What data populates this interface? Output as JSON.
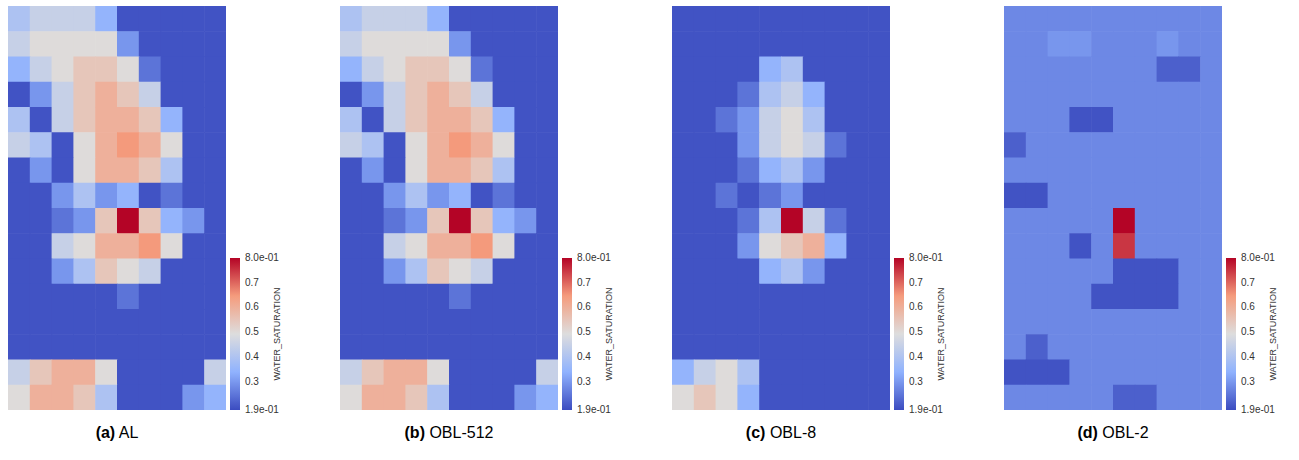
{
  "chart_data": [
    {
      "type": "heatmap",
      "label": "(a)",
      "title": "AL",
      "tick_labels": false,
      "cells": [
        [
          0.4,
          0.45,
          0.45,
          0.45,
          0.35,
          0.2,
          0.2,
          0.2,
          0.2,
          0.2
        ],
        [
          0.45,
          0.5,
          0.5,
          0.5,
          0.5,
          0.3,
          0.2,
          0.2,
          0.2,
          0.2
        ],
        [
          0.35,
          0.45,
          0.5,
          0.55,
          0.55,
          0.5,
          0.25,
          0.2,
          0.2,
          0.2
        ],
        [
          0.2,
          0.3,
          0.45,
          0.55,
          0.6,
          0.55,
          0.45,
          0.2,
          0.2,
          0.2
        ],
        [
          0.4,
          0.2,
          0.45,
          0.55,
          0.6,
          0.6,
          0.55,
          0.35,
          0.2,
          0.2
        ],
        [
          0.45,
          0.4,
          0.2,
          0.5,
          0.6,
          0.65,
          0.6,
          0.5,
          0.2,
          0.2
        ],
        [
          0.2,
          0.3,
          0.2,
          0.5,
          0.6,
          0.6,
          0.55,
          0.4,
          0.2,
          0.2
        ],
        [
          0.2,
          0.2,
          0.3,
          0.4,
          0.3,
          0.35,
          0.2,
          0.25,
          0.2,
          0.2
        ],
        [
          0.2,
          0.2,
          0.25,
          0.3,
          0.55,
          0.8,
          0.55,
          0.35,
          0.3,
          0.2
        ],
        [
          0.2,
          0.2,
          0.45,
          0.5,
          0.6,
          0.6,
          0.65,
          0.5,
          0.2,
          0.2
        ],
        [
          0.2,
          0.2,
          0.3,
          0.4,
          0.55,
          0.5,
          0.45,
          0.2,
          0.2,
          0.2
        ],
        [
          0.2,
          0.2,
          0.2,
          0.2,
          0.2,
          0.25,
          0.2,
          0.2,
          0.2,
          0.2
        ],
        [
          0.2,
          0.2,
          0.2,
          0.2,
          0.2,
          0.2,
          0.2,
          0.2,
          0.2,
          0.2
        ],
        [
          0.2,
          0.2,
          0.2,
          0.2,
          0.2,
          0.2,
          0.2,
          0.2,
          0.2,
          0.2
        ],
        [
          0.45,
          0.55,
          0.6,
          0.6,
          0.5,
          0.2,
          0.2,
          0.2,
          0.2,
          0.45
        ],
        [
          0.5,
          0.6,
          0.6,
          0.55,
          0.4,
          0.2,
          0.2,
          0.2,
          0.3,
          0.35
        ]
      ],
      "colorbar_range": [
        0.19,
        0.8
      ],
      "colorbar_ticks": [
        {
          "value": 0.19,
          "label": "1.9e-01"
        },
        0.3,
        0.4,
        0.5,
        0.6,
        0.7,
        {
          "value": 0.8,
          "label": "8.0e-01"
        }
      ],
      "colorbar_label": "WATER_SATURATION"
    },
    {
      "type": "heatmap",
      "label": "(b)",
      "title": "OBL-512",
      "tick_labels": false,
      "cells": [
        [
          0.4,
          0.45,
          0.45,
          0.45,
          0.35,
          0.2,
          0.2,
          0.2,
          0.2,
          0.2
        ],
        [
          0.45,
          0.5,
          0.5,
          0.5,
          0.5,
          0.3,
          0.2,
          0.2,
          0.2,
          0.2
        ],
        [
          0.35,
          0.45,
          0.5,
          0.55,
          0.55,
          0.5,
          0.25,
          0.2,
          0.2,
          0.2
        ],
        [
          0.2,
          0.3,
          0.45,
          0.55,
          0.6,
          0.55,
          0.45,
          0.2,
          0.2,
          0.2
        ],
        [
          0.4,
          0.2,
          0.45,
          0.55,
          0.6,
          0.6,
          0.55,
          0.35,
          0.2,
          0.2
        ],
        [
          0.45,
          0.4,
          0.2,
          0.5,
          0.6,
          0.65,
          0.6,
          0.5,
          0.2,
          0.2
        ],
        [
          0.2,
          0.3,
          0.2,
          0.5,
          0.6,
          0.6,
          0.55,
          0.4,
          0.2,
          0.2
        ],
        [
          0.2,
          0.2,
          0.3,
          0.4,
          0.3,
          0.35,
          0.2,
          0.25,
          0.2,
          0.2
        ],
        [
          0.2,
          0.2,
          0.25,
          0.3,
          0.55,
          0.8,
          0.55,
          0.35,
          0.3,
          0.2
        ],
        [
          0.2,
          0.2,
          0.45,
          0.5,
          0.6,
          0.6,
          0.65,
          0.5,
          0.2,
          0.2
        ],
        [
          0.2,
          0.2,
          0.3,
          0.4,
          0.55,
          0.5,
          0.45,
          0.2,
          0.2,
          0.2
        ],
        [
          0.2,
          0.2,
          0.2,
          0.2,
          0.2,
          0.25,
          0.2,
          0.2,
          0.2,
          0.2
        ],
        [
          0.2,
          0.2,
          0.2,
          0.2,
          0.2,
          0.2,
          0.2,
          0.2,
          0.2,
          0.2
        ],
        [
          0.2,
          0.2,
          0.2,
          0.2,
          0.2,
          0.2,
          0.2,
          0.2,
          0.2,
          0.2
        ],
        [
          0.45,
          0.55,
          0.6,
          0.6,
          0.5,
          0.2,
          0.2,
          0.2,
          0.2,
          0.45
        ],
        [
          0.5,
          0.6,
          0.6,
          0.55,
          0.4,
          0.2,
          0.2,
          0.2,
          0.3,
          0.35
        ]
      ],
      "colorbar_range": [
        0.19,
        0.8
      ],
      "colorbar_ticks": [
        {
          "value": 0.19,
          "label": "1.9e-01"
        },
        0.3,
        0.4,
        0.5,
        0.6,
        0.7,
        {
          "value": 0.8,
          "label": "8.0e-01"
        }
      ],
      "colorbar_label": "WATER_SATURATION"
    },
    {
      "type": "heatmap",
      "label": "(c)",
      "title": "OBL-8",
      "tick_labels": false,
      "cells": [
        [
          0.2,
          0.2,
          0.2,
          0.2,
          0.2,
          0.2,
          0.2,
          0.2,
          0.2,
          0.2
        ],
        [
          0.2,
          0.2,
          0.2,
          0.2,
          0.2,
          0.2,
          0.2,
          0.2,
          0.2,
          0.2
        ],
        [
          0.2,
          0.2,
          0.2,
          0.2,
          0.35,
          0.4,
          0.2,
          0.2,
          0.2,
          0.2
        ],
        [
          0.2,
          0.2,
          0.2,
          0.25,
          0.4,
          0.45,
          0.35,
          0.2,
          0.2,
          0.2
        ],
        [
          0.2,
          0.2,
          0.25,
          0.3,
          0.45,
          0.5,
          0.4,
          0.2,
          0.2,
          0.2
        ],
        [
          0.2,
          0.2,
          0.2,
          0.3,
          0.45,
          0.5,
          0.45,
          0.25,
          0.2,
          0.2
        ],
        [
          0.2,
          0.2,
          0.2,
          0.25,
          0.35,
          0.4,
          0.3,
          0.2,
          0.2,
          0.2
        ],
        [
          0.2,
          0.2,
          0.25,
          0.2,
          0.25,
          0.3,
          0.2,
          0.2,
          0.2,
          0.2
        ],
        [
          0.2,
          0.2,
          0.2,
          0.25,
          0.4,
          0.8,
          0.45,
          0.25,
          0.2,
          0.2
        ],
        [
          0.2,
          0.2,
          0.2,
          0.3,
          0.5,
          0.55,
          0.6,
          0.35,
          0.2,
          0.2
        ],
        [
          0.2,
          0.2,
          0.2,
          0.2,
          0.35,
          0.4,
          0.3,
          0.2,
          0.2,
          0.2
        ],
        [
          0.2,
          0.2,
          0.2,
          0.2,
          0.2,
          0.2,
          0.2,
          0.2,
          0.2,
          0.2
        ],
        [
          0.2,
          0.2,
          0.2,
          0.2,
          0.2,
          0.2,
          0.2,
          0.2,
          0.2,
          0.2
        ],
        [
          0.2,
          0.2,
          0.2,
          0.2,
          0.2,
          0.2,
          0.2,
          0.2,
          0.2,
          0.2
        ],
        [
          0.35,
          0.45,
          0.5,
          0.4,
          0.2,
          0.2,
          0.2,
          0.2,
          0.2,
          0.2
        ],
        [
          0.5,
          0.55,
          0.5,
          0.35,
          0.2,
          0.2,
          0.2,
          0.2,
          0.2,
          0.2
        ]
      ],
      "colorbar_range": [
        0.19,
        0.8
      ],
      "colorbar_ticks": [
        {
          "value": 0.19,
          "label": "1.9e-01"
        },
        0.3,
        0.4,
        0.5,
        0.6,
        0.7,
        {
          "value": 0.8,
          "label": "8.0e-01"
        }
      ],
      "colorbar_label": "WATER_SATURATION"
    },
    {
      "type": "heatmap",
      "label": "(d)",
      "title": "OBL-2",
      "tick_labels": false,
      "cells": [
        [
          0.28,
          0.28,
          0.28,
          0.28,
          0.28,
          0.28,
          0.28,
          0.28,
          0.28,
          0.28
        ],
        [
          0.28,
          0.28,
          0.3,
          0.3,
          0.28,
          0.28,
          0.28,
          0.3,
          0.28,
          0.28
        ],
        [
          0.28,
          0.28,
          0.28,
          0.28,
          0.28,
          0.28,
          0.28,
          0.22,
          0.22,
          0.28
        ],
        [
          0.28,
          0.28,
          0.28,
          0.28,
          0.28,
          0.28,
          0.28,
          0.28,
          0.28,
          0.28
        ],
        [
          0.28,
          0.28,
          0.28,
          0.2,
          0.2,
          0.28,
          0.28,
          0.28,
          0.28,
          0.28
        ],
        [
          0.22,
          0.28,
          0.28,
          0.28,
          0.28,
          0.28,
          0.28,
          0.28,
          0.28,
          0.28
        ],
        [
          0.28,
          0.28,
          0.28,
          0.28,
          0.28,
          0.28,
          0.28,
          0.28,
          0.28,
          0.28
        ],
        [
          0.2,
          0.2,
          0.28,
          0.28,
          0.28,
          0.28,
          0.28,
          0.28,
          0.28,
          0.28
        ],
        [
          0.28,
          0.28,
          0.28,
          0.28,
          0.28,
          0.8,
          0.28,
          0.28,
          0.28,
          0.28
        ],
        [
          0.28,
          0.28,
          0.28,
          0.2,
          0.28,
          0.75,
          0.28,
          0.28,
          0.28,
          0.28
        ],
        [
          0.28,
          0.28,
          0.28,
          0.28,
          0.28,
          0.2,
          0.2,
          0.2,
          0.28,
          0.28
        ],
        [
          0.28,
          0.28,
          0.28,
          0.28,
          0.2,
          0.2,
          0.2,
          0.2,
          0.28,
          0.28
        ],
        [
          0.28,
          0.28,
          0.28,
          0.28,
          0.28,
          0.28,
          0.28,
          0.28,
          0.28,
          0.28
        ],
        [
          0.28,
          0.22,
          0.28,
          0.28,
          0.28,
          0.28,
          0.28,
          0.28,
          0.28,
          0.28
        ],
        [
          0.2,
          0.2,
          0.2,
          0.28,
          0.28,
          0.28,
          0.28,
          0.28,
          0.28,
          0.28
        ],
        [
          0.28,
          0.28,
          0.28,
          0.28,
          0.28,
          0.22,
          0.22,
          0.28,
          0.28,
          0.28
        ]
      ],
      "colorbar_range": [
        0.19,
        0.8
      ],
      "colorbar_ticks": [
        {
          "value": 0.19,
          "label": "1.9e-01"
        },
        0.3,
        0.4,
        0.5,
        0.6,
        0.7,
        {
          "value": 0.8,
          "label": "8.0e-01"
        }
      ],
      "colorbar_label": "WATER_SATURATION"
    }
  ]
}
